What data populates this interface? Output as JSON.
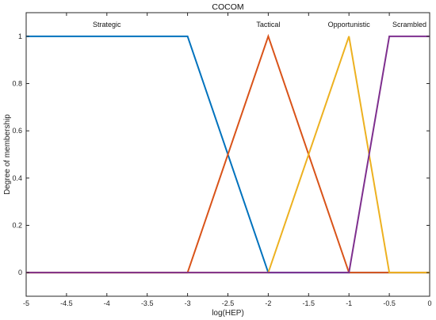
{
  "chart_data": {
    "type": "line",
    "title": "COCOM",
    "xlabel": "log(HEP)",
    "ylabel": "Degree of membership",
    "xlim": [
      -5,
      0
    ],
    "ylim": [
      -0.1,
      1.1
    ],
    "x_ticks": [
      -5,
      -4.5,
      -4,
      -3.5,
      -3,
      -2.5,
      -2,
      -1.5,
      -1,
      -0.5,
      0
    ],
    "x_tick_labels": [
      "-5",
      "-4.5",
      "-4",
      "-3.5",
      "-3",
      "-2.5",
      "-2",
      "-1.5",
      "-1",
      "-0.5",
      "0"
    ],
    "y_ticks": [
      0,
      0.2,
      0.4,
      0.6,
      0.8,
      1
    ],
    "y_tick_labels": [
      "0",
      "0.2",
      "0.4",
      "0.6",
      "0.8",
      "1"
    ],
    "grid": false,
    "series": [
      {
        "name": "Strategic",
        "color": "#0072BD",
        "x": [
          -5,
          -3,
          -2,
          0
        ],
        "y": [
          1,
          1,
          0,
          0
        ]
      },
      {
        "name": "Tactical",
        "color": "#D95319",
        "x": [
          -5,
          -3,
          -2,
          -1,
          0
        ],
        "y": [
          0,
          0,
          1,
          0,
          0
        ]
      },
      {
        "name": "Opportunistic",
        "color": "#EDB120",
        "x": [
          -5,
          -2,
          -1,
          -0.5,
          0
        ],
        "y": [
          0,
          0,
          1,
          0,
          0
        ]
      },
      {
        "name": "Scrambled",
        "color": "#7E2F8E",
        "x": [
          -5,
          -1,
          -0.5,
          0
        ],
        "y": [
          0,
          0,
          1,
          1
        ]
      }
    ],
    "annotations": [
      {
        "text": "Strategic",
        "x": -4.0,
        "y": 1.04
      },
      {
        "text": "Tactical",
        "x": -2.0,
        "y": 1.04
      },
      {
        "text": "Opportunistic",
        "x": -1.0,
        "y": 1.04
      },
      {
        "text": "Scrambled",
        "x": -0.25,
        "y": 1.04
      }
    ]
  }
}
